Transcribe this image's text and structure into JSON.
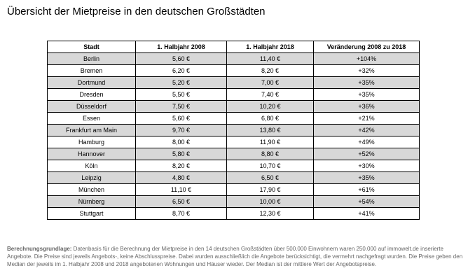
{
  "page": {
    "title": "Übersicht der Mietpreise in den deutschen Großstädten"
  },
  "table": {
    "headers": [
      "Stadt",
      "1. Halbjahr 2008",
      "1. Halbjahr 2018",
      "Veränderung 2008 zu 2018"
    ],
    "rows": [
      [
        "Berlin",
        "5,60 €",
        "11,40 €",
        "+104%"
      ],
      [
        "Bremen",
        "6,20 €",
        "8,20 €",
        "+32%"
      ],
      [
        "Dortmund",
        "5,20 €",
        "7,00 €",
        "+35%"
      ],
      [
        "Dresden",
        "5,50 €",
        "7,40 €",
        "+35%"
      ],
      [
        "Düsseldorf",
        "7,50 €",
        "10,20 €",
        "+36%"
      ],
      [
        "Essen",
        "5,60 €",
        "6,80 €",
        "+21%"
      ],
      [
        "Frankfurt am Main",
        "9,70 €",
        "13,80 €",
        "+42%"
      ],
      [
        "Hamburg",
        "8,00 €",
        "11,90 €",
        "+49%"
      ],
      [
        "Hannover",
        "5,80 €",
        "8,80 €",
        "+52%"
      ],
      [
        "Köln",
        "8,20 €",
        "10,70 €",
        "+30%"
      ],
      [
        "Leipzig",
        "4,80 €",
        "6,50 €",
        "+35%"
      ],
      [
        "München",
        "11,10 €",
        "17,90 €",
        "+61%"
      ],
      [
        "Nürnberg",
        "6,50 €",
        "10,00 €",
        "+54%"
      ],
      [
        "Stuttgart",
        "8,70 €",
        "12,30 €",
        "+41%"
      ]
    ]
  },
  "footnote": {
    "label": "Berechnungsgrundlage:",
    "text": " Datenbasis für die Berechnung der Mietpreise in den 14 deutschen Großstädten über 500.000 Einwohnern waren 250.000 auf immowelt.de inserierte Angebote. Die Preise sind jeweils Angebots-, keine Abschlusspreise. Dabei wurden ausschließlich die Angebote berücksichtigt, die vermehrt nachgefragt wurden. Die Preise geben den Median der jeweils im 1. Halbjahr 2008 und 2018 angebotenen Wohnungen und Häuser wieder. Der Median ist der mittlere Wert der Angebotspreise."
  },
  "colors": {
    "row_stripe": "#d8d8d8",
    "table_border": "#000000",
    "footnote_text": "#666666",
    "title_text": "#000000"
  },
  "chart_data": {
    "type": "table",
    "title": "Übersicht der Mietpreise in den deutschen Großstädten",
    "categories": [
      "Berlin",
      "Bremen",
      "Dortmund",
      "Dresden",
      "Düsseldorf",
      "Essen",
      "Frankfurt am Main",
      "Hamburg",
      "Hannover",
      "Köln",
      "Leipzig",
      "München",
      "Nürnberg",
      "Stuttgart"
    ],
    "series": [
      {
        "name": "1. Halbjahr 2008 (€/m²)",
        "values": [
          5.6,
          6.2,
          5.2,
          5.5,
          7.5,
          5.6,
          9.7,
          8.0,
          5.8,
          8.2,
          4.8,
          11.1,
          6.5,
          8.7
        ]
      },
      {
        "name": "1. Halbjahr 2018 (€/m²)",
        "values": [
          11.4,
          8.2,
          7.0,
          7.4,
          10.2,
          6.8,
          13.8,
          11.9,
          8.8,
          10.7,
          6.5,
          17.9,
          10.0,
          12.3
        ]
      },
      {
        "name": "Veränderung 2008 zu 2018 (%)",
        "values": [
          104,
          32,
          35,
          35,
          36,
          21,
          42,
          49,
          52,
          30,
          35,
          61,
          54,
          41
        ]
      }
    ]
  }
}
